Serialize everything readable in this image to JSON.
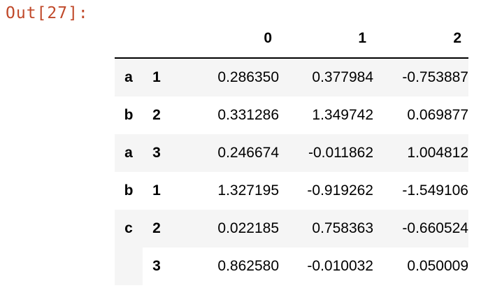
{
  "prompt": "Out[27]:",
  "columns": [
    "0",
    "1",
    "2"
  ],
  "rows": [
    {
      "l0": "a",
      "l1": "1",
      "values": [
        "0.286350",
        "0.377984",
        "-0.753887"
      ]
    },
    {
      "l0": "b",
      "l1": "2",
      "values": [
        "0.331286",
        "1.349742",
        "0.069877"
      ]
    },
    {
      "l0": "a",
      "l1": "3",
      "values": [
        "0.246674",
        "-0.011862",
        "1.004812"
      ]
    },
    {
      "l0": "b",
      "l1": "1",
      "values": [
        "1.327195",
        "-0.919262",
        "-1.549106"
      ]
    },
    {
      "l0": "c",
      "l1": "2",
      "values": [
        "0.022185",
        "0.758363",
        "-0.660524"
      ]
    },
    {
      "l0": "",
      "l1": "3",
      "values": [
        "0.862580",
        "-0.010032",
        "0.050009"
      ]
    }
  ]
}
